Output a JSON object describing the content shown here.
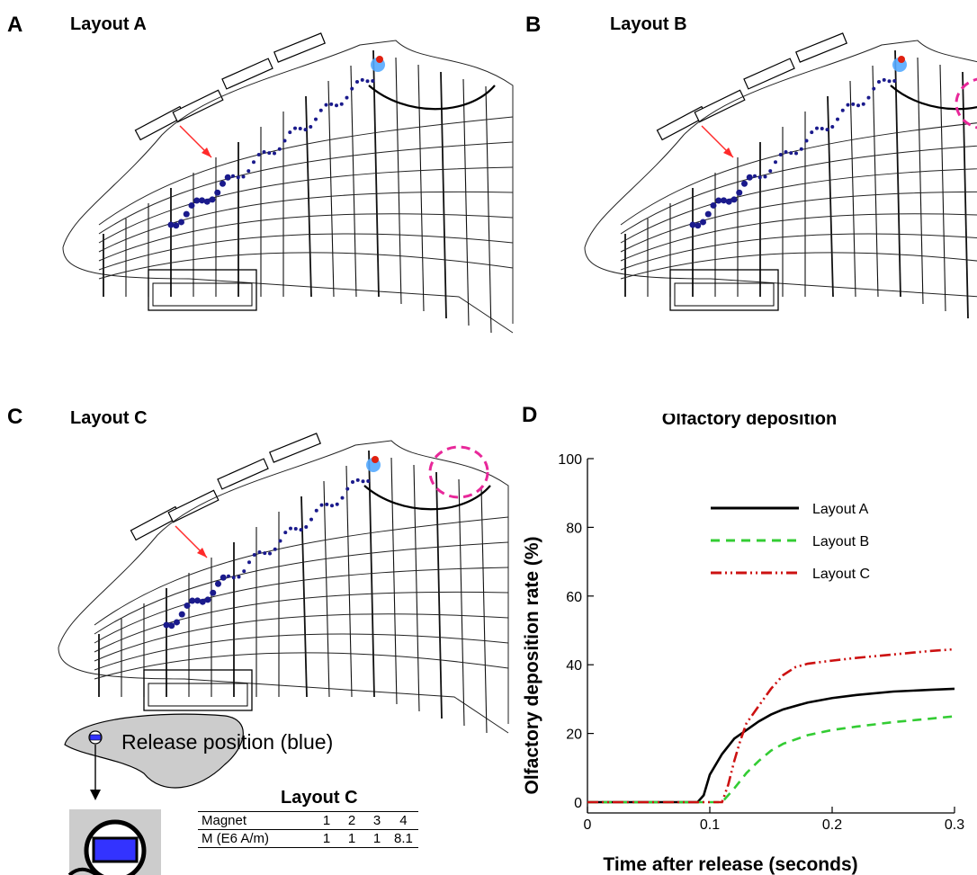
{
  "panels": {
    "a": {
      "letter": "A",
      "title": "Layout A"
    },
    "b": {
      "letter": "B",
      "title": "Layout B"
    },
    "c": {
      "letter": "C",
      "title": "Layout C"
    },
    "d": {
      "letter": "D",
      "title": "Olfactory deposition"
    }
  },
  "release_label": "Release position (blue)",
  "magnet_table": {
    "title": "Layout C",
    "header": [
      "Magnet",
      "1",
      "2",
      "3",
      "4"
    ],
    "row": [
      "M (E6 A/m)",
      "1",
      "1",
      "1",
      "8.1"
    ]
  },
  "colors": {
    "particle_blue": "#1a1a8c",
    "hot_red": "#e02010",
    "arrow_red": "#ff2a2a",
    "circle_magenta": "#e8289a",
    "layout_a": "#000000",
    "layout_b": "#33cc33",
    "layout_c": "#cc1111"
  },
  "chart_data": {
    "type": "line",
    "title": "Olfactory deposition",
    "xlabel": "Time after release (seconds)",
    "ylabel": "Olfactory deposition rate (%)",
    "xlim": [
      0,
      0.3
    ],
    "ylim": [
      0,
      100
    ],
    "xticks": [
      "0",
      "0.1",
      "0.2",
      "0.3"
    ],
    "yticks": [
      "0",
      "20",
      "40",
      "60",
      "80",
      "100"
    ],
    "legend_position": "top-right",
    "series": [
      {
        "name": "Layout A",
        "color": "#000000",
        "dash": "solid",
        "x": [
          0,
          0.09,
          0.095,
          0.1,
          0.11,
          0.12,
          0.13,
          0.14,
          0.15,
          0.16,
          0.18,
          0.2,
          0.22,
          0.25,
          0.28,
          0.3
        ],
        "y": [
          0,
          0,
          2,
          8,
          14,
          18.5,
          21,
          23.5,
          25.5,
          27,
          29,
          30.3,
          31.2,
          32.2,
          32.7,
          33
        ]
      },
      {
        "name": "Layout B",
        "color": "#33cc33",
        "dash": "dashed",
        "x": [
          0,
          0.11,
          0.115,
          0.12,
          0.13,
          0.14,
          0.15,
          0.16,
          0.18,
          0.2,
          0.22,
          0.25,
          0.28,
          0.3
        ],
        "y": [
          0,
          0,
          2,
          4,
          8.5,
          12,
          15,
          17,
          19.5,
          21,
          22,
          23.3,
          24.3,
          25
        ]
      },
      {
        "name": "Layout C",
        "color": "#cc1111",
        "dash": "dashdotdot",
        "x": [
          0,
          0.11,
          0.115,
          0.12,
          0.125,
          0.13,
          0.14,
          0.15,
          0.16,
          0.17,
          0.18,
          0.2,
          0.22,
          0.25,
          0.28,
          0.3
        ],
        "y": [
          0,
          0,
          5,
          12,
          18,
          23,
          28,
          33,
          37,
          39.3,
          40.3,
          41.2,
          42,
          43,
          44,
          44.5
        ]
      }
    ]
  }
}
